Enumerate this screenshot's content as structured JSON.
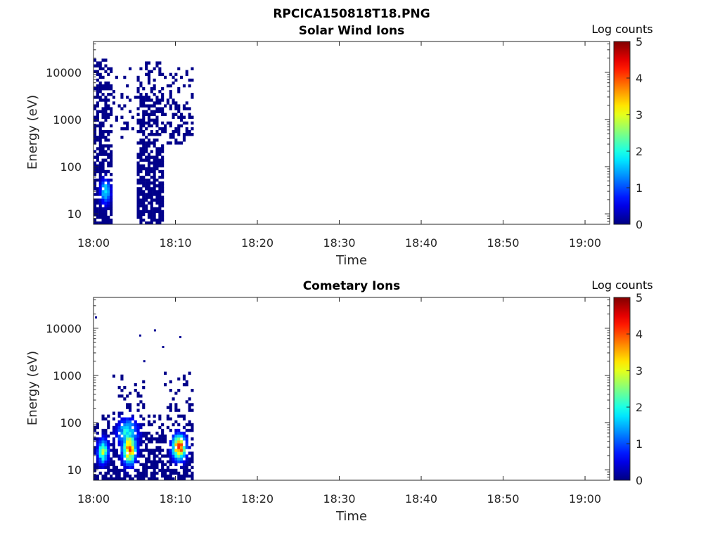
{
  "figure_title": "RPCICA150818T18.PNG",
  "chart_data": [
    {
      "type": "heatmap",
      "title": "Solar Wind Ions",
      "xlabel": "Time",
      "ylabel": "Energy (eV)",
      "x_ticks": [
        "18:00",
        "18:10",
        "18:20",
        "18:30",
        "18:40",
        "18:50",
        "19:00"
      ],
      "xlim": [
        "18:00",
        "19:03"
      ],
      "y_scale": "log",
      "y_ticks": [
        10,
        100,
        1000,
        10000
      ],
      "y_tick_labels": [
        "10",
        "100",
        "1000",
        "10000"
      ],
      "ylim": [
        6,
        45000
      ],
      "colorbar": {
        "title": "Log counts",
        "range": [
          0,
          5
        ],
        "ticks": [
          "0",
          "1",
          "2",
          "3",
          "4",
          "5"
        ],
        "colormap": "jet"
      },
      "regions": [
        {
          "t_start": "18:00",
          "t_end": "18:02",
          "e_min": 6,
          "e_max": 20000,
          "density_high": 0.85,
          "density_low": 0.35
        },
        {
          "t_start": "18:02",
          "t_end": "18:05",
          "e_min": 400,
          "e_max": 15000,
          "density_high": 0.15,
          "density_low": 0.05
        },
        {
          "t_start": "18:05",
          "t_end": "18:08.5",
          "e_min": 6,
          "e_max": 16000,
          "density_high": 0.85,
          "density_low": 0.35
        },
        {
          "t_start": "18:08.5",
          "t_end": "18:12",
          "e_min": 300,
          "e_max": 12000,
          "density_high": 0.45,
          "density_low": 0.15
        }
      ],
      "hot_spots": [
        {
          "t": "18:01.3",
          "e": 30,
          "level": 1.8,
          "spread_min": 0.6,
          "spread_dec": 0.25
        }
      ]
    },
    {
      "type": "heatmap",
      "title": "Cometary Ions",
      "xlabel": "Time",
      "ylabel": "Energy (eV)",
      "x_ticks": [
        "18:00",
        "18:10",
        "18:20",
        "18:30",
        "18:40",
        "18:50",
        "19:00"
      ],
      "xlim": [
        "18:00",
        "19:03"
      ],
      "y_scale": "log",
      "y_ticks": [
        10,
        100,
        1000,
        10000
      ],
      "y_tick_labels": [
        "10",
        "100",
        "1000",
        "10000"
      ],
      "ylim": [
        6,
        45000
      ],
      "colorbar": {
        "title": "Log counts",
        "range": [
          0,
          5
        ],
        "ticks": [
          "0",
          "1",
          "2",
          "3",
          "4",
          "5"
        ],
        "colormap": "jet"
      },
      "regions": [
        {
          "t_start": "18:00",
          "t_end": "18:12",
          "e_min": 6,
          "e_max": 150,
          "density_high": 0.75,
          "density_low": 0.3
        },
        {
          "t_start": "18:02",
          "t_end": "18:06",
          "e_min": 150,
          "e_max": 1200,
          "density_high": 0.2,
          "density_low": 0.05
        },
        {
          "t_start": "18:08",
          "t_end": "18:12",
          "e_min": 150,
          "e_max": 1200,
          "density_high": 0.2,
          "density_low": 0.05
        }
      ],
      "hot_spots": [
        {
          "t": "18:01",
          "e": 25,
          "level": 2.6,
          "spread_min": 0.6,
          "spread_dec": 0.25
        },
        {
          "t": "18:04.2",
          "e": 28,
          "level": 3.8,
          "spread_min": 0.8,
          "spread_dec": 0.3
        },
        {
          "t": "18:04",
          "e": 60,
          "level": 2.0,
          "spread_min": 1.2,
          "spread_dec": 0.3
        },
        {
          "t": "18:10.3",
          "e": 30,
          "level": 4.0,
          "spread_min": 0.8,
          "spread_dec": 0.25
        }
      ],
      "isolated_points": [
        {
          "t": "18:00.3",
          "e": 17000
        },
        {
          "t": "18:05.7",
          "e": 7000
        },
        {
          "t": "18:06.2",
          "e": 2000
        },
        {
          "t": "18:07.5",
          "e": 9000
        },
        {
          "t": "18:08.5",
          "e": 4000
        },
        {
          "t": "18:10.6",
          "e": 6500
        }
      ]
    }
  ]
}
